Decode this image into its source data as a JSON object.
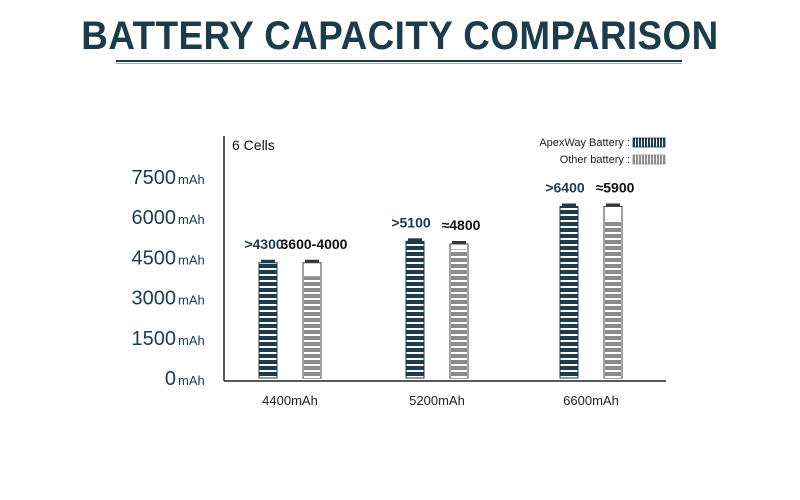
{
  "chart_data": {
    "type": "bar",
    "title": "BATTERY CAPACITY COMPARISON",
    "annotation": "6 Cells",
    "categories": [
      "4400mAh",
      "5200mAh",
      "6600mAh"
    ],
    "y_unit": "mAh",
    "ylim": [
      0,
      7500
    ],
    "yticks": [
      0,
      1500,
      3000,
      4500,
      6000,
      7500
    ],
    "ytick_labels": [
      "0",
      "1500",
      "3000",
      "4500",
      "6000",
      "7500"
    ],
    "legend_position": "top-right",
    "grid": false,
    "series": [
      {
        "name": "ApexWay Battery :",
        "values": [
          4300,
          5100,
          6400
        ],
        "labels": [
          ">4300",
          ">5100",
          ">6400"
        ],
        "color": "#1c3c4c"
      },
      {
        "name": "Other battery :",
        "values": [
          4300,
          5000,
          6400
        ],
        "labels": [
          "3600-4000",
          "≈4800",
          "≈5900"
        ],
        "fill_values": [
          3800,
          4800,
          5900
        ],
        "color": "#8c8c8c"
      }
    ]
  }
}
